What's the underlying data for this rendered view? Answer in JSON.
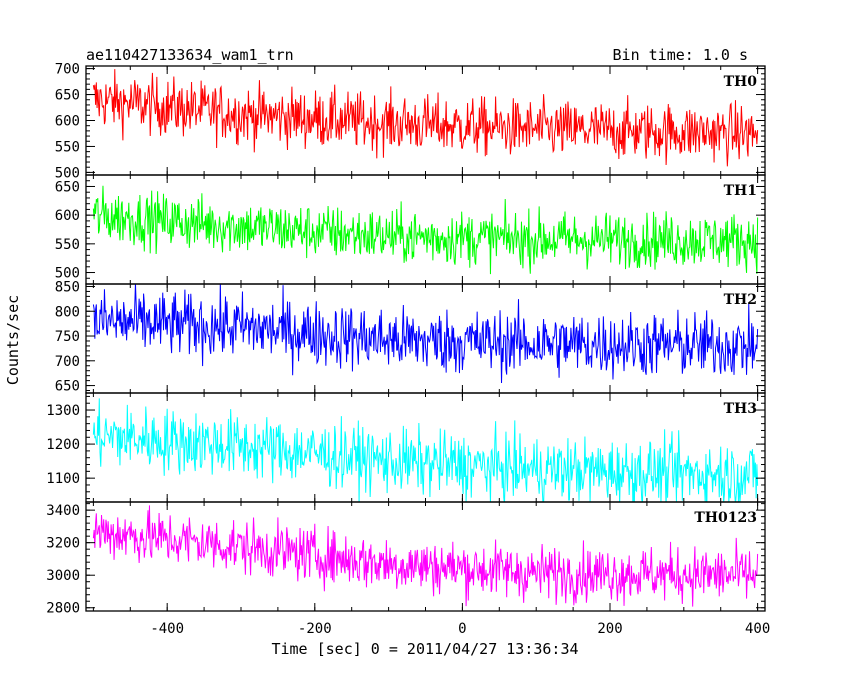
{
  "chart_data": {
    "type": "line",
    "title": "ae110427133634_wam1_trn",
    "bin_time_label": "Bin time: 1.0 s",
    "xlabel": "Time [sec] 0 = 2011/04/27 13:36:34",
    "ylabel": "Counts/sec",
    "xlim": [
      -510,
      410
    ],
    "x_ticks": [
      -400,
      -200,
      0,
      200,
      400
    ],
    "x_start": -500,
    "x_end": 400,
    "x_step": 1,
    "panels": [
      {
        "name": "TH0",
        "color": "#ff0000",
        "ylim": [
          495,
          705
        ],
        "y_ticks": [
          500,
          550,
          600,
          650,
          700
        ],
        "trend": [
          [
            -500,
            640
          ],
          [
            -300,
            612
          ],
          [
            -100,
            595
          ],
          [
            100,
            583
          ],
          [
            400,
            575
          ]
        ],
        "noise": 28
      },
      {
        "name": "TH1",
        "color": "#00ff00",
        "ylim": [
          480,
          670
        ],
        "y_ticks": [
          500,
          550,
          600,
          650
        ],
        "trend": [
          [
            -500,
            600
          ],
          [
            -300,
            580
          ],
          [
            -100,
            563
          ],
          [
            100,
            558
          ],
          [
            400,
            556
          ]
        ],
        "noise": 24
      },
      {
        "name": "TH2",
        "color": "#0000ff",
        "ylim": [
          635,
          855
        ],
        "y_ticks": [
          650,
          700,
          750,
          800,
          850
        ],
        "trend": [
          [
            -500,
            780
          ],
          [
            -300,
            768
          ],
          [
            -100,
            742
          ],
          [
            100,
            735
          ],
          [
            400,
            730
          ]
        ],
        "noise": 33
      },
      {
        "name": "TH3",
        "color": "#00ffff",
        "ylim": [
          1030,
          1350
        ],
        "y_ticks": [
          1100,
          1200,
          1300
        ],
        "trend": [
          [
            -500,
            1225
          ],
          [
            -300,
            1195
          ],
          [
            -100,
            1150
          ],
          [
            100,
            1125
          ],
          [
            400,
            1110
          ]
        ],
        "noise": 48
      },
      {
        "name": "TH0123",
        "color": "#ff00ff",
        "ylim": [
          2780,
          3450
        ],
        "y_ticks": [
          2800,
          3000,
          3200,
          3400
        ],
        "trend": [
          [
            -500,
            3270
          ],
          [
            -300,
            3175
          ],
          [
            -100,
            3070
          ],
          [
            100,
            3015
          ],
          [
            400,
            3000
          ]
        ],
        "noise": 85
      }
    ]
  }
}
